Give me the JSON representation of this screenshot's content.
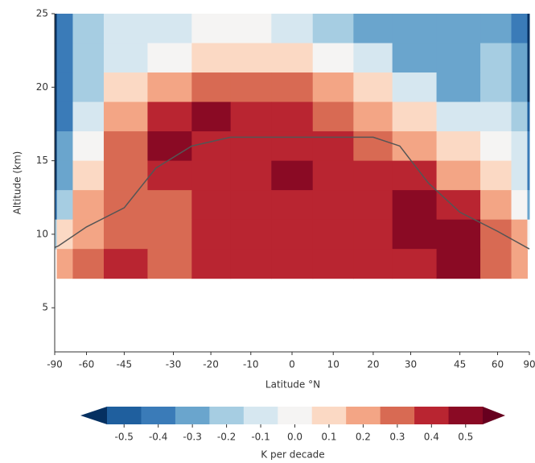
{
  "chart_data": {
    "type": "contour",
    "xlabel": "Latitude °N",
    "ylabel": "Altitude (km)",
    "xscale": "sine",
    "xlim": [
      -90,
      90
    ],
    "xticks": [
      -90,
      -60,
      -45,
      -30,
      -20,
      -10,
      0,
      10,
      20,
      30,
      45,
      60,
      90
    ],
    "ylim": [
      2,
      25
    ],
    "yticks": [
      5,
      10,
      15,
      20,
      25
    ],
    "x": [
      -90,
      -75,
      -60,
      -45,
      -30,
      -20,
      -10,
      0,
      10,
      20,
      30,
      45,
      60,
      75,
      90
    ],
    "y": [
      24,
      22,
      20,
      18,
      16,
      14,
      12,
      10,
      8
    ],
    "z": [
      [
        -0.6,
        -0.4,
        -0.2,
        -0.1,
        -0.1,
        0,
        0,
        -0.1,
        -0.2,
        -0.3,
        -0.3,
        -0.3,
        -0.3,
        -0.4,
        -0.6
      ],
      [
        -0.6,
        -0.4,
        -0.2,
        -0.1,
        0,
        0.1,
        0.1,
        0.1,
        0,
        -0.1,
        -0.3,
        -0.3,
        -0.2,
        -0.3,
        -0.6
      ],
      [
        -0.6,
        -0.4,
        -0.2,
        0.1,
        0.2,
        0.3,
        0.3,
        0.3,
        0.2,
        0.1,
        -0.1,
        -0.3,
        -0.2,
        -0.3,
        -0.6
      ],
      [
        -0.6,
        -0.4,
        -0.1,
        0.2,
        0.4,
        0.5,
        0.4,
        0.4,
        0.3,
        0.2,
        0.1,
        -0.1,
        -0.1,
        -0.2,
        -0.5
      ],
      [
        -0.6,
        -0.3,
        0,
        0.3,
        0.5,
        0.4,
        0.4,
        0.4,
        0.4,
        0.3,
        0.2,
        0.1,
        0,
        -0.1,
        -0.4
      ],
      [
        -0.6,
        -0.3,
        0.1,
        0.3,
        0.4,
        0.4,
        0.4,
        0.5,
        0.4,
        0.4,
        0.4,
        0.2,
        0.1,
        -0.1,
        -0.4
      ],
      [
        -0.5,
        -0.2,
        0.2,
        0.3,
        0.3,
        0.4,
        0.4,
        0.4,
        0.4,
        0.4,
        0.5,
        0.4,
        0.2,
        0,
        -0.3
      ],
      [
        -0.2,
        0.1,
        0.2,
        0.3,
        0.3,
        0.4,
        0.4,
        0.4,
        0.4,
        0.4,
        0.5,
        0.5,
        0.3,
        0.2,
        0
      ],
      [
        null,
        0.2,
        0.3,
        0.4,
        0.3,
        0.4,
        0.4,
        0.4,
        0.4,
        0.4,
        0.4,
        0.5,
        0.3,
        0.2,
        null
      ]
    ],
    "levels": [
      -0.55,
      -0.45,
      -0.35,
      -0.25,
      -0.15,
      -0.05,
      0.05,
      0.15,
      0.25,
      0.35,
      0.45,
      0.55
    ],
    "colors": [
      "#053061",
      "#1f5f9e",
      "#3a7bb8",
      "#6aa5cd",
      "#a6cde2",
      "#d6e7f0",
      "#f5f4f3",
      "#fbd9c4",
      "#f3a585",
      "#d86a53",
      "#b92531",
      "#8a0a24",
      "#67001f"
    ],
    "lines": [
      {
        "color": "#555555",
        "x": [
          -90,
          -80,
          -60,
          -45,
          -35,
          -25,
          -15,
          0,
          20,
          27,
          35,
          45,
          60,
          90
        ],
        "y": [
          9.1,
          9.2,
          10.5,
          11.8,
          14.5,
          16,
          16.6,
          16.6,
          16.6,
          16,
          13.5,
          11.5,
          10.2,
          9
        ]
      }
    ],
    "colorbar": {
      "label": "K per decade",
      "ticks": [
        -0.5,
        -0.4,
        -0.3,
        -0.2,
        -0.1,
        {
          "value": 0,
          "label": "0.0"
        },
        0.1,
        0.2,
        0.3,
        0.4,
        0.5
      ]
    }
  }
}
